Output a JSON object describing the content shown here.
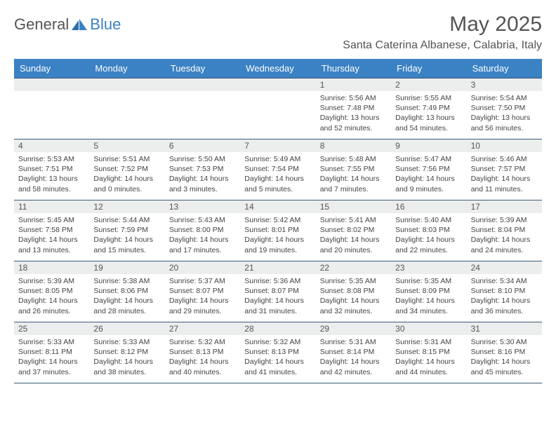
{
  "logo": {
    "general": "General",
    "blue": "Blue"
  },
  "title": "May 2025",
  "location": "Santa Caterina Albanese, Calabria, Italy",
  "colors": {
    "header_bg": "#3b82c4",
    "header_text": "#ffffff",
    "daynum_bg": "#eceded",
    "rule": "#3b5b78",
    "body_text": "#444444",
    "title_text": "#555555"
  },
  "daysOfWeek": [
    "Sunday",
    "Monday",
    "Tuesday",
    "Wednesday",
    "Thursday",
    "Friday",
    "Saturday"
  ],
  "weeks": [
    [
      {
        "n": "",
        "sr": "",
        "ss": "",
        "dl": ""
      },
      {
        "n": "",
        "sr": "",
        "ss": "",
        "dl": ""
      },
      {
        "n": "",
        "sr": "",
        "ss": "",
        "dl": ""
      },
      {
        "n": "",
        "sr": "",
        "ss": "",
        "dl": ""
      },
      {
        "n": "1",
        "sr": "Sunrise: 5:56 AM",
        "ss": "Sunset: 7:48 PM",
        "dl": "Daylight: 13 hours and 52 minutes."
      },
      {
        "n": "2",
        "sr": "Sunrise: 5:55 AM",
        "ss": "Sunset: 7:49 PM",
        "dl": "Daylight: 13 hours and 54 minutes."
      },
      {
        "n": "3",
        "sr": "Sunrise: 5:54 AM",
        "ss": "Sunset: 7:50 PM",
        "dl": "Daylight: 13 hours and 56 minutes."
      }
    ],
    [
      {
        "n": "4",
        "sr": "Sunrise: 5:53 AM",
        "ss": "Sunset: 7:51 PM",
        "dl": "Daylight: 13 hours and 58 minutes."
      },
      {
        "n": "5",
        "sr": "Sunrise: 5:51 AM",
        "ss": "Sunset: 7:52 PM",
        "dl": "Daylight: 14 hours and 0 minutes."
      },
      {
        "n": "6",
        "sr": "Sunrise: 5:50 AM",
        "ss": "Sunset: 7:53 PM",
        "dl": "Daylight: 14 hours and 3 minutes."
      },
      {
        "n": "7",
        "sr": "Sunrise: 5:49 AM",
        "ss": "Sunset: 7:54 PM",
        "dl": "Daylight: 14 hours and 5 minutes."
      },
      {
        "n": "8",
        "sr": "Sunrise: 5:48 AM",
        "ss": "Sunset: 7:55 PM",
        "dl": "Daylight: 14 hours and 7 minutes."
      },
      {
        "n": "9",
        "sr": "Sunrise: 5:47 AM",
        "ss": "Sunset: 7:56 PM",
        "dl": "Daylight: 14 hours and 9 minutes."
      },
      {
        "n": "10",
        "sr": "Sunrise: 5:46 AM",
        "ss": "Sunset: 7:57 PM",
        "dl": "Daylight: 14 hours and 11 minutes."
      }
    ],
    [
      {
        "n": "11",
        "sr": "Sunrise: 5:45 AM",
        "ss": "Sunset: 7:58 PM",
        "dl": "Daylight: 14 hours and 13 minutes."
      },
      {
        "n": "12",
        "sr": "Sunrise: 5:44 AM",
        "ss": "Sunset: 7:59 PM",
        "dl": "Daylight: 14 hours and 15 minutes."
      },
      {
        "n": "13",
        "sr": "Sunrise: 5:43 AM",
        "ss": "Sunset: 8:00 PM",
        "dl": "Daylight: 14 hours and 17 minutes."
      },
      {
        "n": "14",
        "sr": "Sunrise: 5:42 AM",
        "ss": "Sunset: 8:01 PM",
        "dl": "Daylight: 14 hours and 19 minutes."
      },
      {
        "n": "15",
        "sr": "Sunrise: 5:41 AM",
        "ss": "Sunset: 8:02 PM",
        "dl": "Daylight: 14 hours and 20 minutes."
      },
      {
        "n": "16",
        "sr": "Sunrise: 5:40 AM",
        "ss": "Sunset: 8:03 PM",
        "dl": "Daylight: 14 hours and 22 minutes."
      },
      {
        "n": "17",
        "sr": "Sunrise: 5:39 AM",
        "ss": "Sunset: 8:04 PM",
        "dl": "Daylight: 14 hours and 24 minutes."
      }
    ],
    [
      {
        "n": "18",
        "sr": "Sunrise: 5:39 AM",
        "ss": "Sunset: 8:05 PM",
        "dl": "Daylight: 14 hours and 26 minutes."
      },
      {
        "n": "19",
        "sr": "Sunrise: 5:38 AM",
        "ss": "Sunset: 8:06 PM",
        "dl": "Daylight: 14 hours and 28 minutes."
      },
      {
        "n": "20",
        "sr": "Sunrise: 5:37 AM",
        "ss": "Sunset: 8:07 PM",
        "dl": "Daylight: 14 hours and 29 minutes."
      },
      {
        "n": "21",
        "sr": "Sunrise: 5:36 AM",
        "ss": "Sunset: 8:07 PM",
        "dl": "Daylight: 14 hours and 31 minutes."
      },
      {
        "n": "22",
        "sr": "Sunrise: 5:35 AM",
        "ss": "Sunset: 8:08 PM",
        "dl": "Daylight: 14 hours and 32 minutes."
      },
      {
        "n": "23",
        "sr": "Sunrise: 5:35 AM",
        "ss": "Sunset: 8:09 PM",
        "dl": "Daylight: 14 hours and 34 minutes."
      },
      {
        "n": "24",
        "sr": "Sunrise: 5:34 AM",
        "ss": "Sunset: 8:10 PM",
        "dl": "Daylight: 14 hours and 36 minutes."
      }
    ],
    [
      {
        "n": "25",
        "sr": "Sunrise: 5:33 AM",
        "ss": "Sunset: 8:11 PM",
        "dl": "Daylight: 14 hours and 37 minutes."
      },
      {
        "n": "26",
        "sr": "Sunrise: 5:33 AM",
        "ss": "Sunset: 8:12 PM",
        "dl": "Daylight: 14 hours and 38 minutes."
      },
      {
        "n": "27",
        "sr": "Sunrise: 5:32 AM",
        "ss": "Sunset: 8:13 PM",
        "dl": "Daylight: 14 hours and 40 minutes."
      },
      {
        "n": "28",
        "sr": "Sunrise: 5:32 AM",
        "ss": "Sunset: 8:13 PM",
        "dl": "Daylight: 14 hours and 41 minutes."
      },
      {
        "n": "29",
        "sr": "Sunrise: 5:31 AM",
        "ss": "Sunset: 8:14 PM",
        "dl": "Daylight: 14 hours and 42 minutes."
      },
      {
        "n": "30",
        "sr": "Sunrise: 5:31 AM",
        "ss": "Sunset: 8:15 PM",
        "dl": "Daylight: 14 hours and 44 minutes."
      },
      {
        "n": "31",
        "sr": "Sunrise: 5:30 AM",
        "ss": "Sunset: 8:16 PM",
        "dl": "Daylight: 14 hours and 45 minutes."
      }
    ]
  ]
}
